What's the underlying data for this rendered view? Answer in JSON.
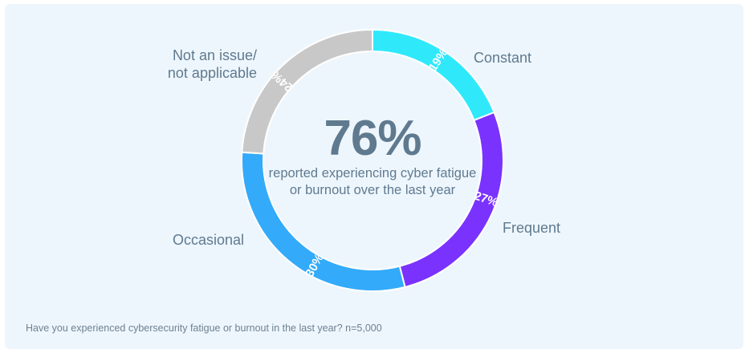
{
  "chart_data": {
    "type": "pie",
    "subtype": "donut",
    "categories": [
      "Constant",
      "Frequent",
      "Occasional",
      "Not an issue/ not applicable"
    ],
    "values": [
      19,
      27,
      30,
      24
    ],
    "value_labels": [
      "19%",
      "27%",
      "30%",
      "24%"
    ],
    "colors": [
      "#2FE9FB",
      "#7A32FF",
      "#33AAFA",
      "#C8C8C8"
    ],
    "center_value": "76%",
    "center_text": "reported experiencing cyber fatigue or burnout over the last year",
    "footnote": "Have you experienced cybersecurity fatigue or burnout in the last year? n=5,000"
  }
}
